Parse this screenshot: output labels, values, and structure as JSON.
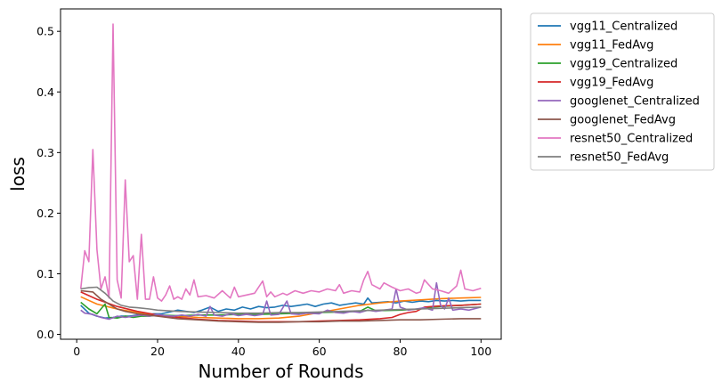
{
  "chart_data": {
    "type": "line",
    "xlabel": "Number of Rounds",
    "ylabel": "loss",
    "xlim": [
      -4,
      105
    ],
    "ylim": [
      -0.008,
      0.537
    ],
    "xticks": [
      0,
      20,
      40,
      60,
      80,
      100
    ],
    "yticks": [
      0.0,
      0.1,
      0.2,
      0.3,
      0.4,
      0.5
    ],
    "xtick_labels": [
      "0",
      "20",
      "40",
      "60",
      "80",
      "100"
    ],
    "ytick_labels": [
      "0.0",
      "0.1",
      "0.2",
      "0.3",
      "0.4",
      "0.5"
    ],
    "grid": false,
    "legend_position": "outside-right-top",
    "series": [
      {
        "name": "vgg11_Centralized",
        "color": "#1f77b4",
        "points": [
          [
            1,
            0.048
          ],
          [
            3,
            0.035
          ],
          [
            5,
            0.03
          ],
          [
            7,
            0.027
          ],
          [
            9,
            0.028
          ],
          [
            11,
            0.03
          ],
          [
            13,
            0.03
          ],
          [
            15,
            0.032
          ],
          [
            17,
            0.032
          ],
          [
            19,
            0.034
          ],
          [
            21,
            0.034
          ],
          [
            23,
            0.037
          ],
          [
            25,
            0.04
          ],
          [
            27,
            0.038
          ],
          [
            29,
            0.036
          ],
          [
            31,
            0.04
          ],
          [
            33,
            0.045
          ],
          [
            35,
            0.038
          ],
          [
            37,
            0.042
          ],
          [
            39,
            0.04
          ],
          [
            41,
            0.045
          ],
          [
            43,
            0.042
          ],
          [
            45,
            0.046
          ],
          [
            47,
            0.044
          ],
          [
            49,
            0.045
          ],
          [
            51,
            0.048
          ],
          [
            53,
            0.046
          ],
          [
            55,
            0.048
          ],
          [
            57,
            0.05
          ],
          [
            59,
            0.046
          ],
          [
            61,
            0.05
          ],
          [
            63,
            0.052
          ],
          [
            65,
            0.048
          ],
          [
            67,
            0.05
          ],
          [
            69,
            0.052
          ],
          [
            71,
            0.05
          ],
          [
            72,
            0.06
          ],
          [
            73,
            0.052
          ],
          [
            75,
            0.053
          ],
          [
            77,
            0.054
          ],
          [
            79,
            0.052
          ],
          [
            81,
            0.055
          ],
          [
            83,
            0.053
          ],
          [
            85,
            0.055
          ],
          [
            87,
            0.054
          ],
          [
            89,
            0.056
          ],
          [
            91,
            0.055
          ],
          [
            93,
            0.056
          ],
          [
            95,
            0.055
          ],
          [
            97,
            0.056
          ],
          [
            100,
            0.056
          ]
        ]
      },
      {
        "name": "vgg11_FedAvg",
        "color": "#ff7f0e",
        "points": [
          [
            1,
            0.062
          ],
          [
            5,
            0.05
          ],
          [
            10,
            0.042
          ],
          [
            15,
            0.036
          ],
          [
            20,
            0.032
          ],
          [
            25,
            0.03
          ],
          [
            30,
            0.028
          ],
          [
            35,
            0.027
          ],
          [
            40,
            0.026
          ],
          [
            45,
            0.026
          ],
          [
            50,
            0.027
          ],
          [
            55,
            0.03
          ],
          [
            60,
            0.036
          ],
          [
            65,
            0.042
          ],
          [
            70,
            0.048
          ],
          [
            75,
            0.052
          ],
          [
            80,
            0.055
          ],
          [
            85,
            0.057
          ],
          [
            90,
            0.059
          ],
          [
            95,
            0.06
          ],
          [
            100,
            0.061
          ]
        ]
      },
      {
        "name": "vgg19_Centralized",
        "color": "#2ca02c",
        "points": [
          [
            1,
            0.053
          ],
          [
            3,
            0.042
          ],
          [
            5,
            0.034
          ],
          [
            7,
            0.05
          ],
          [
            8,
            0.028
          ],
          [
            10,
            0.027
          ],
          [
            12,
            0.03
          ],
          [
            14,
            0.028
          ],
          [
            16,
            0.03
          ],
          [
            18,
            0.03
          ],
          [
            20,
            0.032
          ],
          [
            25,
            0.031
          ],
          [
            30,
            0.032
          ],
          [
            35,
            0.032
          ],
          [
            40,
            0.033
          ],
          [
            45,
            0.033
          ],
          [
            50,
            0.034
          ],
          [
            55,
            0.035
          ],
          [
            60,
            0.036
          ],
          [
            65,
            0.037
          ],
          [
            70,
            0.038
          ],
          [
            72,
            0.045
          ],
          [
            74,
            0.039
          ],
          [
            80,
            0.04
          ],
          [
            85,
            0.042
          ],
          [
            88,
            0.045
          ],
          [
            90,
            0.046
          ],
          [
            95,
            0.048
          ],
          [
            100,
            0.05
          ]
        ]
      },
      {
        "name": "vgg19_FedAvg",
        "color": "#d62728",
        "points": [
          [
            1,
            0.07
          ],
          [
            5,
            0.058
          ],
          [
            10,
            0.046
          ],
          [
            15,
            0.038
          ],
          [
            20,
            0.032
          ],
          [
            25,
            0.028
          ],
          [
            30,
            0.025
          ],
          [
            35,
            0.023
          ],
          [
            40,
            0.022
          ],
          [
            45,
            0.021
          ],
          [
            50,
            0.021
          ],
          [
            55,
            0.021
          ],
          [
            60,
            0.022
          ],
          [
            65,
            0.023
          ],
          [
            70,
            0.024
          ],
          [
            75,
            0.026
          ],
          [
            78,
            0.028
          ],
          [
            80,
            0.033
          ],
          [
            82,
            0.036
          ],
          [
            84,
            0.038
          ],
          [
            86,
            0.045
          ],
          [
            88,
            0.046
          ],
          [
            90,
            0.047
          ],
          [
            95,
            0.048
          ],
          [
            100,
            0.05
          ]
        ]
      },
      {
        "name": "googlenet_Centralized",
        "color": "#9467bd",
        "points": [
          [
            1,
            0.04
          ],
          [
            2,
            0.035
          ],
          [
            4,
            0.033
          ],
          [
            6,
            0.028
          ],
          [
            8,
            0.025
          ],
          [
            10,
            0.03
          ],
          [
            12,
            0.028
          ],
          [
            14,
            0.03
          ],
          [
            16,
            0.032
          ],
          [
            18,
            0.03
          ],
          [
            20,
            0.033
          ],
          [
            22,
            0.031
          ],
          [
            24,
            0.03
          ],
          [
            26,
            0.032
          ],
          [
            28,
            0.03
          ],
          [
            30,
            0.033
          ],
          [
            32,
            0.03
          ],
          [
            33,
            0.046
          ],
          [
            34,
            0.032
          ],
          [
            36,
            0.03
          ],
          [
            38,
            0.034
          ],
          [
            40,
            0.031
          ],
          [
            42,
            0.033
          ],
          [
            44,
            0.031
          ],
          [
            46,
            0.033
          ],
          [
            47,
            0.055
          ],
          [
            48,
            0.032
          ],
          [
            50,
            0.033
          ],
          [
            52,
            0.055
          ],
          [
            53,
            0.034
          ],
          [
            55,
            0.033
          ],
          [
            57,
            0.035
          ],
          [
            60,
            0.034
          ],
          [
            62,
            0.04
          ],
          [
            64,
            0.036
          ],
          [
            66,
            0.035
          ],
          [
            68,
            0.038
          ],
          [
            70,
            0.036
          ],
          [
            72,
            0.04
          ],
          [
            74,
            0.038
          ],
          [
            76,
            0.04
          ],
          [
            78,
            0.042
          ],
          [
            79,
            0.075
          ],
          [
            80,
            0.045
          ],
          [
            82,
            0.04
          ],
          [
            84,
            0.042
          ],
          [
            86,
            0.044
          ],
          [
            88,
            0.04
          ],
          [
            89,
            0.085
          ],
          [
            90,
            0.048
          ],
          [
            91,
            0.042
          ],
          [
            92,
            0.06
          ],
          [
            93,
            0.04
          ],
          [
            95,
            0.042
          ],
          [
            97,
            0.04
          ],
          [
            100,
            0.045
          ]
        ]
      },
      {
        "name": "googlenet_FedAvg",
        "color": "#8c564b",
        "points": [
          [
            1,
            0.072
          ],
          [
            4,
            0.07
          ],
          [
            6,
            0.058
          ],
          [
            8,
            0.05
          ],
          [
            10,
            0.042
          ],
          [
            12,
            0.038
          ],
          [
            15,
            0.034
          ],
          [
            20,
            0.03
          ],
          [
            25,
            0.026
          ],
          [
            30,
            0.024
          ],
          [
            35,
            0.022
          ],
          [
            40,
            0.021
          ],
          [
            45,
            0.02
          ],
          [
            50,
            0.02
          ],
          [
            55,
            0.021
          ],
          [
            60,
            0.021
          ],
          [
            65,
            0.022
          ],
          [
            70,
            0.022
          ],
          [
            75,
            0.023
          ],
          [
            80,
            0.024
          ],
          [
            85,
            0.024
          ],
          [
            90,
            0.025
          ],
          [
            95,
            0.026
          ],
          [
            100,
            0.026
          ]
        ]
      },
      {
        "name": "resnet50_Centralized",
        "color": "#e377c2",
        "points": [
          [
            1,
            0.075
          ],
          [
            2,
            0.138
          ],
          [
            3,
            0.12
          ],
          [
            4,
            0.305
          ],
          [
            5,
            0.14
          ],
          [
            6,
            0.075
          ],
          [
            7,
            0.095
          ],
          [
            8,
            0.06
          ],
          [
            9,
            0.512
          ],
          [
            10,
            0.09
          ],
          [
            11,
            0.06
          ],
          [
            12,
            0.255
          ],
          [
            13,
            0.12
          ],
          [
            14,
            0.13
          ],
          [
            15,
            0.058
          ],
          [
            16,
            0.165
          ],
          [
            17,
            0.058
          ],
          [
            18,
            0.058
          ],
          [
            19,
            0.095
          ],
          [
            20,
            0.06
          ],
          [
            21,
            0.055
          ],
          [
            22,
            0.065
          ],
          [
            23,
            0.08
          ],
          [
            24,
            0.058
          ],
          [
            25,
            0.062
          ],
          [
            26,
            0.058
          ],
          [
            27,
            0.075
          ],
          [
            28,
            0.065
          ],
          [
            29,
            0.09
          ],
          [
            30,
            0.062
          ],
          [
            32,
            0.064
          ],
          [
            34,
            0.06
          ],
          [
            36,
            0.072
          ],
          [
            38,
            0.06
          ],
          [
            39,
            0.078
          ],
          [
            40,
            0.062
          ],
          [
            42,
            0.065
          ],
          [
            44,
            0.068
          ],
          [
            46,
            0.088
          ],
          [
            47,
            0.062
          ],
          [
            48,
            0.07
          ],
          [
            49,
            0.062
          ],
          [
            51,
            0.068
          ],
          [
            52,
            0.065
          ],
          [
            54,
            0.072
          ],
          [
            56,
            0.068
          ],
          [
            58,
            0.072
          ],
          [
            60,
            0.07
          ],
          [
            62,
            0.075
          ],
          [
            64,
            0.072
          ],
          [
            65,
            0.082
          ],
          [
            66,
            0.068
          ],
          [
            68,
            0.072
          ],
          [
            70,
            0.07
          ],
          [
            71,
            0.09
          ],
          [
            72,
            0.104
          ],
          [
            73,
            0.082
          ],
          [
            75,
            0.075
          ],
          [
            76,
            0.085
          ],
          [
            78,
            0.078
          ],
          [
            80,
            0.072
          ],
          [
            82,
            0.075
          ],
          [
            84,
            0.068
          ],
          [
            85,
            0.07
          ],
          [
            86,
            0.09
          ],
          [
            88,
            0.075
          ],
          [
            90,
            0.072
          ],
          [
            92,
            0.068
          ],
          [
            94,
            0.08
          ],
          [
            95,
            0.106
          ],
          [
            96,
            0.075
          ],
          [
            98,
            0.072
          ],
          [
            100,
            0.076
          ]
        ]
      },
      {
        "name": "resnet50_FedAvg",
        "color": "#7f7f7f",
        "points": [
          [
            1,
            0.075
          ],
          [
            3,
            0.077
          ],
          [
            5,
            0.078
          ],
          [
            7,
            0.068
          ],
          [
            9,
            0.055
          ],
          [
            11,
            0.048
          ],
          [
            13,
            0.045
          ],
          [
            15,
            0.044
          ],
          [
            18,
            0.042
          ],
          [
            20,
            0.04
          ],
          [
            25,
            0.038
          ],
          [
            30,
            0.037
          ],
          [
            35,
            0.036
          ],
          [
            40,
            0.035
          ],
          [
            45,
            0.035
          ],
          [
            50,
            0.036
          ],
          [
            55,
            0.036
          ],
          [
            60,
            0.037
          ],
          [
            65,
            0.038
          ],
          [
            70,
            0.039
          ],
          [
            75,
            0.04
          ],
          [
            80,
            0.041
          ],
          [
            85,
            0.042
          ],
          [
            90,
            0.043
          ],
          [
            95,
            0.044
          ],
          [
            100,
            0.045
          ]
        ]
      }
    ]
  }
}
